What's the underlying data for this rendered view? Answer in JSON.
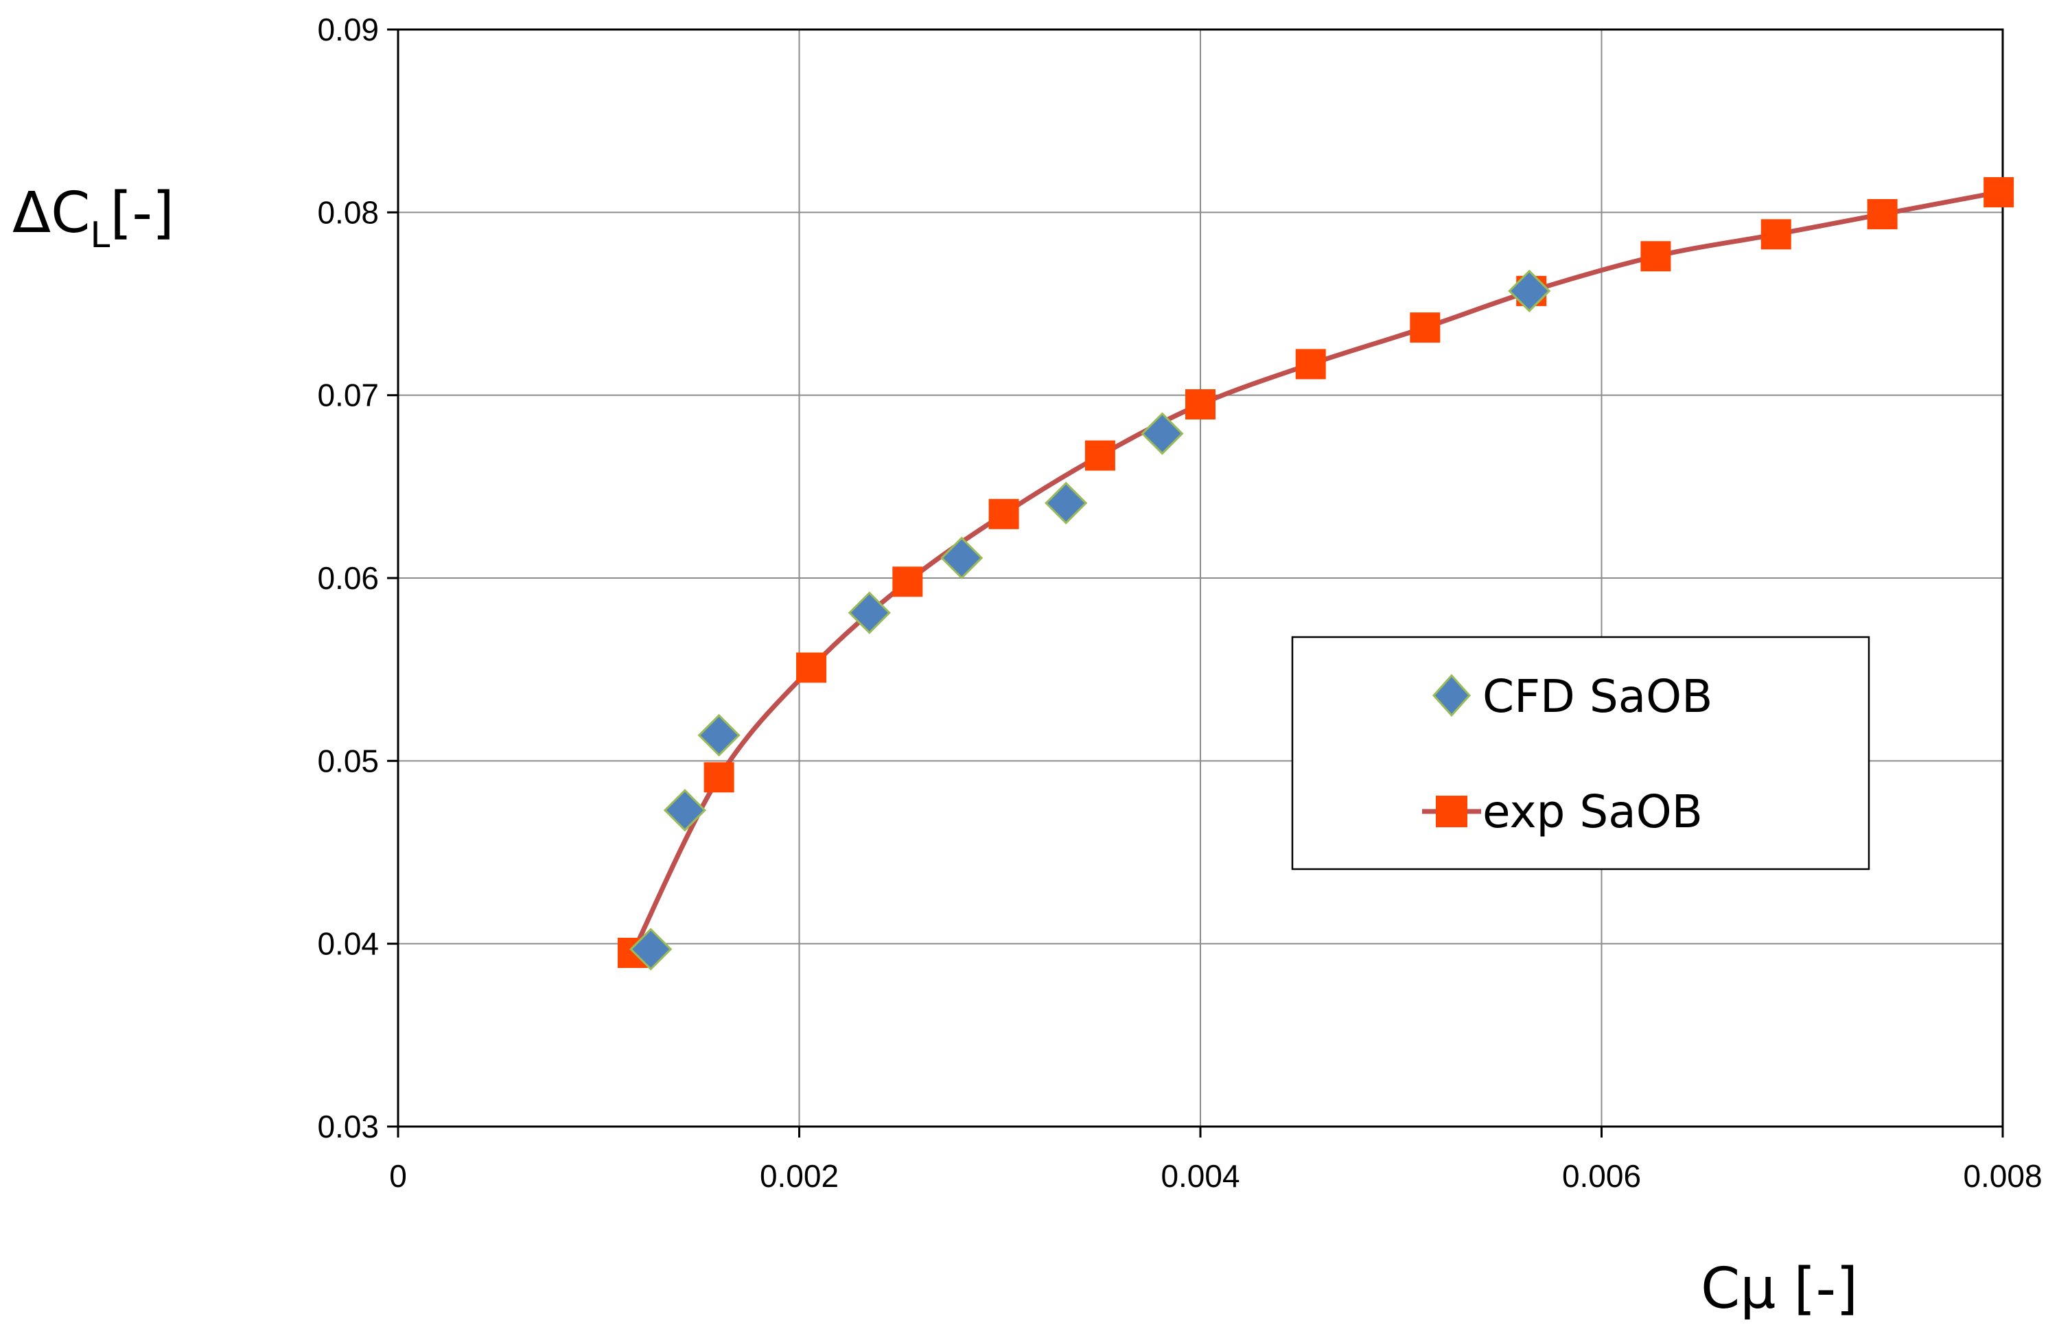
{
  "chart_data": {
    "type": "line",
    "xlabel": "Cμ [-]",
    "ylabel_main": "ΔC",
    "ylabel_sub": "L",
    "ylabel_tail": "[-]",
    "xlim": [
      0,
      0.008
    ],
    "ylim": [
      0.03,
      0.09
    ],
    "xticks": [
      0,
      0.002,
      0.004,
      0.006,
      0.008
    ],
    "xtick_labels": [
      "0",
      "0.002",
      "0.004",
      "0.006",
      "0.008"
    ],
    "yticks": [
      0.03,
      0.04,
      0.05,
      0.06,
      0.07,
      0.08,
      0.09
    ],
    "ytick_labels": [
      "0.03",
      "0.04",
      "0.05",
      "0.06",
      "0.07",
      "0.08",
      "0.09"
    ],
    "grid": true,
    "legend_position": "center-right",
    "series": [
      {
        "name": "CFD SaOB",
        "kind": "scatter",
        "marker": "diamond",
        "color": "#4F81BD",
        "edge_color": "#9BBB59",
        "x": [
          0.00126,
          0.00143,
          0.0016,
          0.00235,
          0.00281,
          0.00333,
          0.00381,
          0.00564
        ],
        "y": [
          0.0397,
          0.0473,
          0.0514,
          0.0581,
          0.0611,
          0.0641,
          0.0679,
          0.0757
        ]
      },
      {
        "name": "exp SaOB",
        "kind": "line+marker",
        "marker": "square",
        "color": "#FF4500",
        "line_color": "#C0504D",
        "x": [
          0.00117,
          0.0016,
          0.00206,
          0.00254,
          0.00302,
          0.0035,
          0.004,
          0.00455,
          0.00512,
          0.00565,
          0.00627,
          0.00687,
          0.0074,
          0.00798
        ],
        "y": [
          0.0395,
          0.0491,
          0.0551,
          0.0598,
          0.0635,
          0.0667,
          0.0695,
          0.0717,
          0.0737,
          0.0757,
          0.0776,
          0.0788,
          0.0799,
          0.0811
        ]
      }
    ]
  }
}
